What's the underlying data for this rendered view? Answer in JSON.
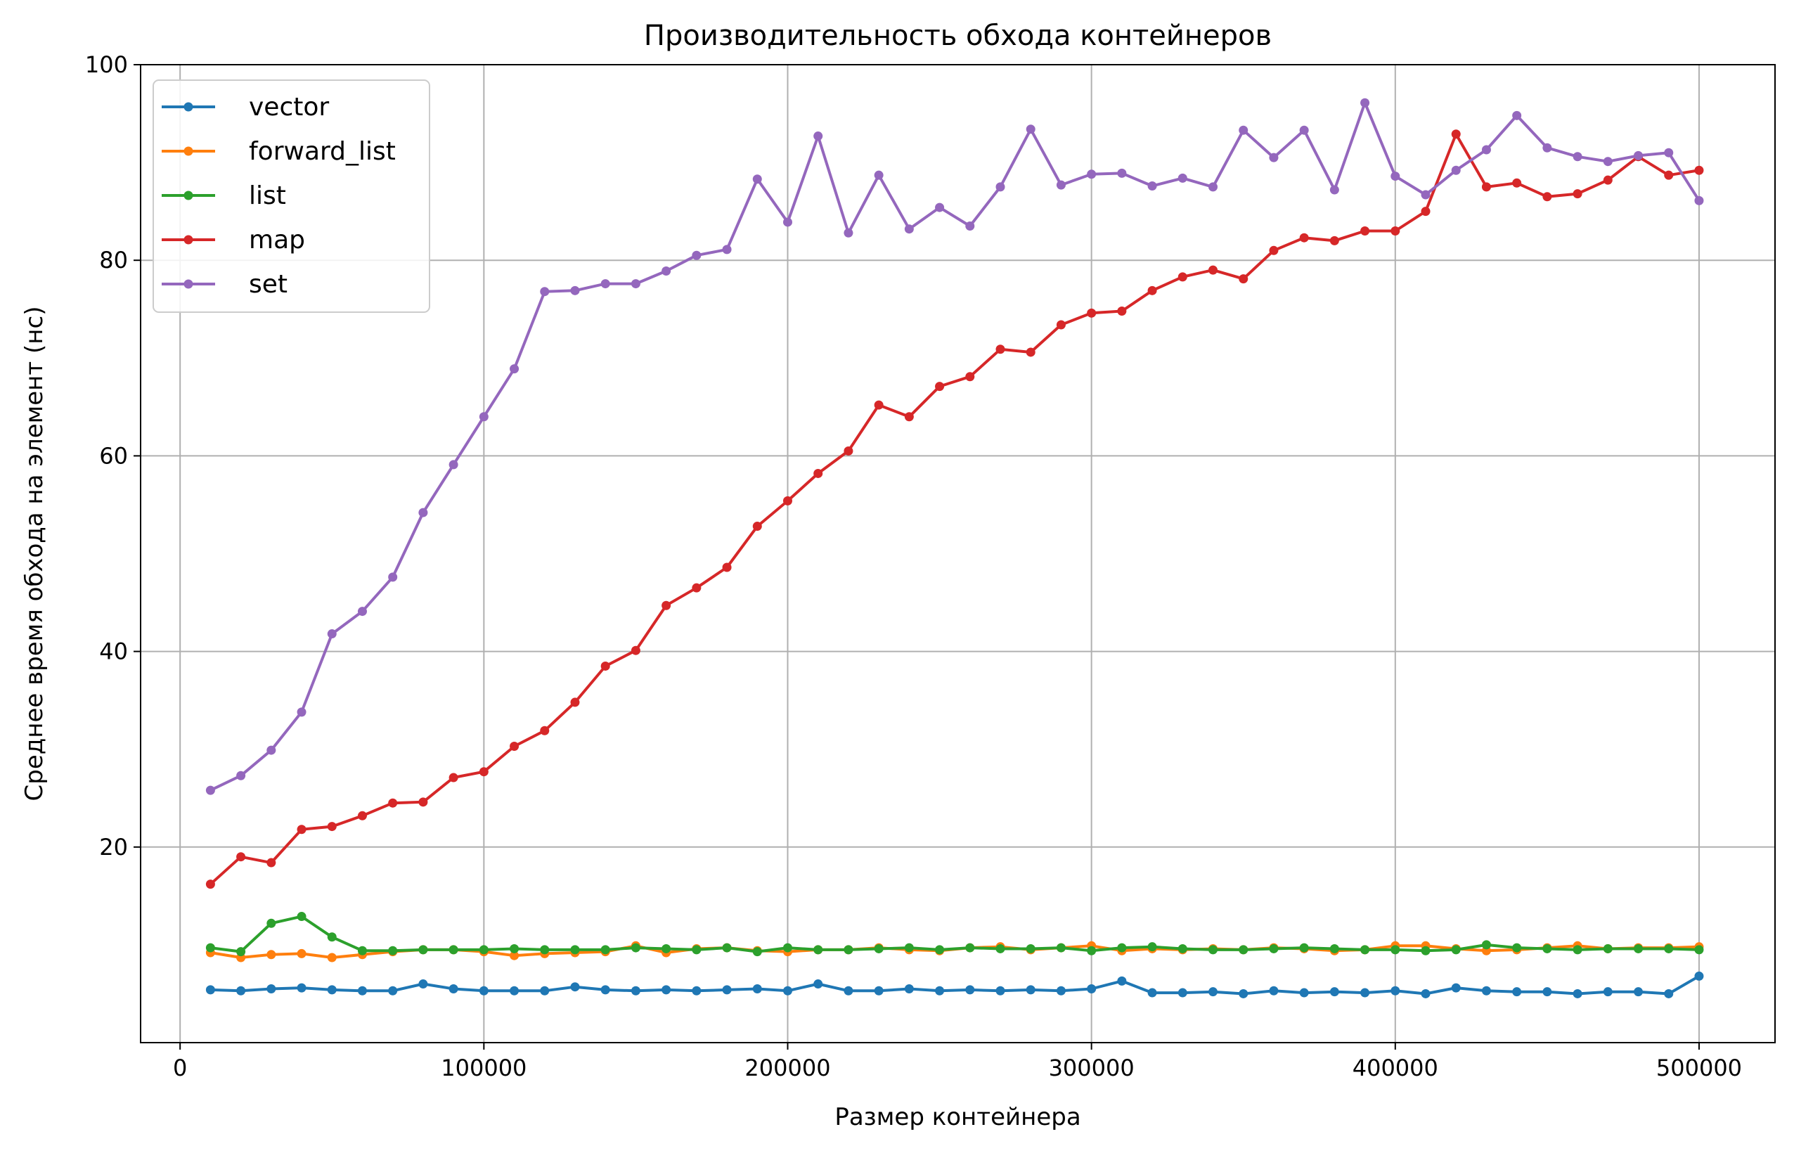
{
  "chart_data": {
    "type": "line",
    "title": "Производительность обхода контейнеров",
    "xlabel": "Размер контейнера",
    "ylabel": "Среднее время обхода на элемент (нс)",
    "xlim": [
      -13000,
      525000
    ],
    "ylim": [
      0,
      100
    ],
    "xticks": [
      0,
      100000,
      200000,
      300000,
      400000,
      500000
    ],
    "yticks": [
      20,
      40,
      60,
      80,
      100
    ],
    "grid": true,
    "legend_position": "upper-left",
    "x": [
      10000,
      20000,
      30000,
      40000,
      50000,
      60000,
      70000,
      80000,
      90000,
      100000,
      110000,
      120000,
      130000,
      140000,
      150000,
      160000,
      170000,
      180000,
      190000,
      200000,
      210000,
      220000,
      230000,
      240000,
      250000,
      260000,
      270000,
      280000,
      290000,
      300000,
      310000,
      320000,
      330000,
      340000,
      350000,
      360000,
      370000,
      380000,
      390000,
      400000,
      410000,
      420000,
      430000,
      440000,
      450000,
      460000,
      470000,
      480000,
      490000,
      500000
    ],
    "series": [
      {
        "name": "vector",
        "color": "#1f77b4",
        "values": [
          5.4,
          5.3,
          5.5,
          5.6,
          5.4,
          5.3,
          5.3,
          6.0,
          5.5,
          5.3,
          5.3,
          5.3,
          5.7,
          5.4,
          5.3,
          5.4,
          5.3,
          5.4,
          5.5,
          5.3,
          6.0,
          5.3,
          5.3,
          5.5,
          5.3,
          5.4,
          5.3,
          5.4,
          5.3,
          5.5,
          6.3,
          5.1,
          5.1,
          5.2,
          5.0,
          5.3,
          5.1,
          5.2,
          5.1,
          5.3,
          5.0,
          5.6,
          5.3,
          5.2,
          5.2,
          5.0,
          5.2,
          5.2,
          5.0,
          6.8
        ]
      },
      {
        "name": "forward_list",
        "color": "#ff7f0e",
        "values": [
          9.2,
          8.7,
          9.0,
          9.1,
          8.7,
          9.0,
          9.3,
          9.5,
          9.5,
          9.3,
          8.9,
          9.1,
          9.2,
          9.3,
          9.9,
          9.2,
          9.6,
          9.7,
          9.4,
          9.3,
          9.5,
          9.5,
          9.7,
          9.5,
          9.4,
          9.7,
          9.8,
          9.5,
          9.7,
          9.9,
          9.4,
          9.6,
          9.5,
          9.6,
          9.5,
          9.7,
          9.6,
          9.4,
          9.5,
          9.9,
          9.9,
          9.6,
          9.4,
          9.5,
          9.7,
          9.9,
          9.6,
          9.7,
          9.7,
          9.8
        ]
      },
      {
        "name": "list",
        "color": "#2ca02c",
        "values": [
          9.7,
          9.3,
          12.2,
          12.9,
          10.8,
          9.4,
          9.4,
          9.5,
          9.5,
          9.5,
          9.6,
          9.5,
          9.5,
          9.5,
          9.7,
          9.6,
          9.5,
          9.7,
          9.3,
          9.7,
          9.5,
          9.5,
          9.6,
          9.7,
          9.5,
          9.7,
          9.6,
          9.6,
          9.7,
          9.4,
          9.7,
          9.8,
          9.6,
          9.5,
          9.5,
          9.6,
          9.7,
          9.6,
          9.5,
          9.5,
          9.4,
          9.5,
          10.0,
          9.7,
          9.6,
          9.5,
          9.6,
          9.6,
          9.6,
          9.5
        ]
      },
      {
        "name": "map",
        "color": "#d62728",
        "values": [
          16.2,
          19.0,
          18.4,
          21.8,
          22.1,
          23.2,
          24.5,
          24.6,
          27.1,
          27.7,
          30.3,
          31.9,
          34.8,
          38.5,
          40.1,
          44.7,
          46.5,
          48.6,
          52.8,
          55.4,
          58.2,
          60.5,
          65.2,
          64.0,
          67.1,
          68.1,
          70.9,
          70.6,
          73.4,
          74.6,
          74.8,
          76.9,
          78.3,
          79.0,
          78.1,
          81.0,
          82.3,
          82.0,
          83.0,
          83.0,
          85.0,
          92.9,
          87.5,
          87.9,
          86.5,
          86.8,
          88.2,
          90.6,
          88.7,
          89.2
        ]
      },
      {
        "name": "set",
        "color": "#9467bd",
        "values": [
          25.8,
          27.3,
          29.9,
          33.8,
          41.8,
          44.1,
          47.6,
          54.2,
          59.1,
          64.0,
          68.9,
          76.8,
          76.9,
          77.6,
          77.6,
          78.9,
          80.5,
          81.1,
          88.3,
          83.9,
          92.7,
          82.8,
          88.7,
          83.2,
          85.4,
          83.5,
          87.5,
          93.4,
          87.7,
          88.8,
          88.9,
          87.6,
          88.4,
          87.5,
          93.3,
          90.5,
          93.3,
          87.2,
          96.1,
          88.6,
          86.7,
          89.2,
          91.3,
          94.8,
          91.5,
          90.6,
          90.1,
          90.7,
          91.0,
          86.1
        ]
      }
    ]
  }
}
